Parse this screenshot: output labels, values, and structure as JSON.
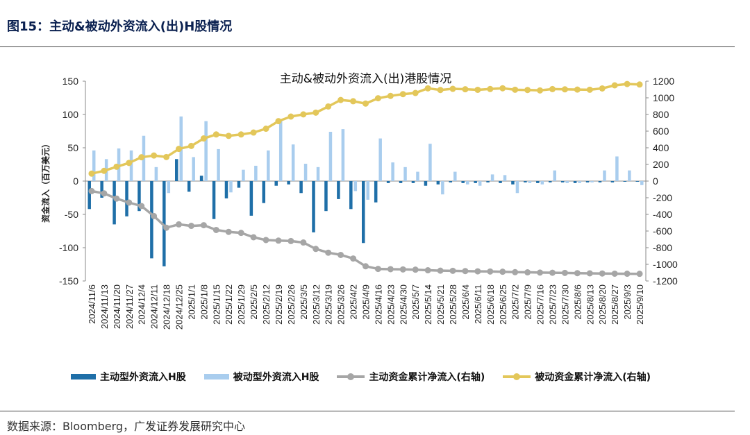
{
  "header": {
    "figure_title": "图15：主动&被动外资流入(出)H股情况"
  },
  "footer": {
    "source": "数据来源：Bloomberg，广发证券发展研究中心"
  },
  "chart_data": {
    "type": "bar+line",
    "title": "主动&被动外资流入(出)港股情况",
    "ylabel": "资金流入（百万美元）",
    "ylim": [
      -150,
      150
    ],
    "yticks": [
      -150,
      -100,
      -50,
      0,
      50,
      100,
      150
    ],
    "y2lim": [
      -1200,
      1200
    ],
    "y2ticks": [
      -1200,
      -1000,
      -800,
      -600,
      -400,
      -200,
      0,
      200,
      400,
      600,
      800,
      1000,
      1200
    ],
    "categories": [
      "2024/11/6",
      "2024/11/13",
      "2024/11/20",
      "2024/11/27",
      "2024/12/4",
      "2024/12/11",
      "2024/12/18",
      "2024/12/25",
      "2025/1/1",
      "2025/1/8",
      "2025/1/15",
      "2025/1/22",
      "2025/1/29",
      "2025/2/5",
      "2025/2/12",
      "2025/2/19",
      "2025/2/26",
      "2025/3/5",
      "2025/3/12",
      "2025/3/19",
      "2025/3/26",
      "2025/4/2",
      "2025/4/9",
      "2025/4/16",
      "2025/4/23",
      "2025/4/30",
      "2025/5/7",
      "2025/5/14",
      "2025/5/21",
      "2025/5/28",
      "2025/6/4",
      "2025/6/11",
      "2025/6/18",
      "2025/6/25",
      "2025/7/2",
      "2025/7/9",
      "2025/7/16",
      "2025/7/23",
      "2025/7/30",
      "2025/8/6",
      "2025/8/13",
      "2025/8/20",
      "2025/8/27",
      "2025/9/3",
      "2025/9/10"
    ],
    "colors": {
      "active": "#1f6fa8",
      "passive": "#a9cdee",
      "active_cum": "#a6a6a6",
      "passive_cum": "#e3c75a"
    },
    "legend": [
      "主动型外资流入H股",
      "被动型外资流入H股",
      "主动资金累计净流入(右轴)",
      "被动资金累计净流入(右轴)"
    ],
    "series": [
      {
        "name": "主动型外资流入H股",
        "axis": "left",
        "kind": "bar",
        "values": [
          -42,
          -25,
          -65,
          -53,
          -45,
          -116,
          -128,
          33,
          -16,
          8,
          -57,
          -26,
          -10,
          -52,
          -33,
          -7,
          -5,
          -18,
          -77,
          -45,
          -27,
          -42,
          -93,
          -32,
          -3,
          -3,
          -3,
          -7,
          -5,
          -2,
          -3,
          -3,
          -2,
          -3,
          -5,
          -2,
          -3,
          -2,
          -2,
          -3,
          -2,
          -2,
          -2,
          -1,
          -1
        ]
      },
      {
        "name": "被动型外资流入H股",
        "axis": "left",
        "kind": "bar",
        "values": [
          46,
          33,
          49,
          46,
          68,
          21,
          -18,
          97,
          36,
          90,
          48,
          -17,
          17,
          23,
          46,
          91,
          55,
          26,
          21,
          74,
          78,
          -15,
          -28,
          64,
          28,
          21,
          14,
          56,
          -20,
          14,
          -5,
          -7,
          10,
          9,
          -18,
          -3,
          -5,
          16,
          -3,
          -3,
          -2,
          16,
          37,
          16,
          -6
        ]
      },
      {
        "name": "主动资金累计净流入(右轴)",
        "axis": "right",
        "kind": "line",
        "values": [
          -120,
          -148,
          -210,
          -258,
          -300,
          -420,
          -560,
          -520,
          -538,
          -530,
          -587,
          -610,
          -622,
          -675,
          -708,
          -715,
          -720,
          -738,
          -815,
          -860,
          -887,
          -930,
          -1023,
          -1055,
          -1058,
          -1061,
          -1064,
          -1071,
          -1076,
          -1078,
          -1081,
          -1084,
          -1086,
          -1089,
          -1094,
          -1096,
          -1099,
          -1101,
          -1103,
          -1106,
          -1108,
          -1110,
          -1112,
          -1113,
          -1114
        ]
      },
      {
        "name": "被动资金累计净流入(右轴)",
        "axis": "right",
        "kind": "line",
        "values": [
          90,
          123,
          172,
          218,
          286,
          307,
          289,
          386,
          422,
          512,
          560,
          543,
          560,
          583,
          629,
          720,
          775,
          801,
          822,
          896,
          974,
          959,
          931,
          995,
          1023,
          1044,
          1058,
          1114,
          1094,
          1108,
          1103,
          1096,
          1106,
          1115,
          1097,
          1094,
          1089,
          1105,
          1102,
          1099,
          1097,
          1113,
          1150,
          1166,
          1160
        ]
      }
    ]
  }
}
